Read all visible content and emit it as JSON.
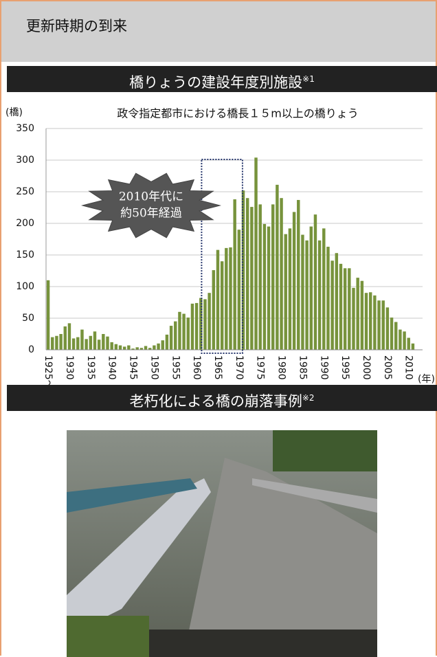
{
  "header": {
    "title": "更新時期の到来"
  },
  "section1": {
    "title": "橋りょうの建設年度別施設",
    "note": "※1"
  },
  "section2": {
    "title": "老朽化による橋の崩落事例",
    "note": "※2"
  },
  "chart_data": {
    "type": "bar",
    "title": "政令指定都市における橋長１５m以上の橋りょう",
    "y_label": "(橋)",
    "x_label": "(年)",
    "annotation": [
      "2010年代に",
      "約50年経過"
    ],
    "categories": [
      "1925〜",
      null,
      null,
      null,
      null,
      "1930",
      null,
      null,
      null,
      null,
      "1935",
      null,
      null,
      null,
      null,
      "1940",
      null,
      null,
      null,
      null,
      "1945",
      null,
      null,
      null,
      null,
      "1950",
      null,
      null,
      null,
      null,
      "1955",
      null,
      null,
      null,
      null,
      "1960",
      null,
      null,
      null,
      null,
      "1965",
      null,
      null,
      null,
      null,
      "1970",
      null,
      null,
      null,
      null,
      "1975",
      null,
      null,
      null,
      null,
      "1980",
      null,
      null,
      null,
      null,
      "1985",
      null,
      null,
      null,
      null,
      "1990",
      null,
      null,
      null,
      null,
      "1995",
      null,
      null,
      null,
      null,
      "2000",
      null,
      null,
      null,
      null,
      "2005",
      null,
      null,
      null,
      null,
      "2010",
      null
    ],
    "values": [
      110,
      20,
      22,
      25,
      37,
      42,
      18,
      20,
      32,
      17,
      22,
      29,
      16,
      25,
      21,
      12,
      9,
      7,
      5,
      7,
      2,
      4,
      3,
      6,
      3,
      7,
      10,
      15,
      24,
      38,
      45,
      60,
      57,
      51,
      73,
      74,
      82,
      80,
      90,
      126,
      158,
      140,
      161,
      162,
      238,
      190,
      252,
      240,
      226,
      304,
      230,
      199,
      195,
      230,
      261,
      240,
      183,
      192,
      218,
      237,
      182,
      173,
      195,
      214,
      173,
      192,
      163,
      141,
      153,
      136,
      129,
      129,
      98,
      114,
      109,
      90,
      91,
      86,
      78,
      78,
      67,
      51,
      44,
      32,
      29,
      19,
      10
    ],
    "color": "#77933c",
    "ylim": [
      0,
      350
    ],
    "yticks": [
      0,
      50,
      100,
      150,
      200,
      250,
      300,
      350
    ],
    "grid": true
  }
}
